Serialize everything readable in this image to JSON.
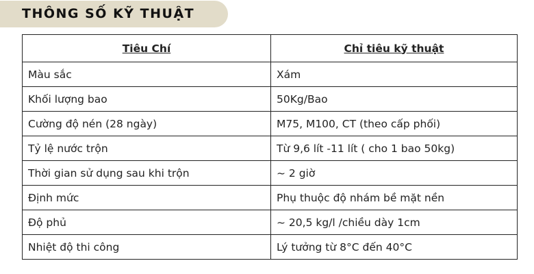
{
  "title": "THÔNG SỐ KỸ THUẬT",
  "table": {
    "headers": [
      "Tiêu Chí",
      "Chỉ tiêu kỹ thuật"
    ],
    "rows": [
      [
        "Màu sắc",
        "Xám"
      ],
      [
        "Khối lượng bao",
        "50Kg/Bao"
      ],
      [
        "Cường độ nén (28 ngày)",
        "M75, M100, CT (theo cấp phối)"
      ],
      [
        "Tỷ lệ nước trộn",
        "Từ 9,6 lít -11 lít ( cho 1 bao 50kg)"
      ],
      [
        "Thời gian sử dụng sau khi trộn",
        "~ 2 giờ"
      ],
      [
        "Định mức",
        "Phụ thuộc độ nhám bề mặt nền"
      ],
      [
        "Độ phủ",
        "~ 20,5 kg/l /chiều dày 1cm"
      ],
      [
        "Nhiệt độ thi công",
        "Lý tưởng từ 8°C đến 40°C"
      ]
    ]
  }
}
